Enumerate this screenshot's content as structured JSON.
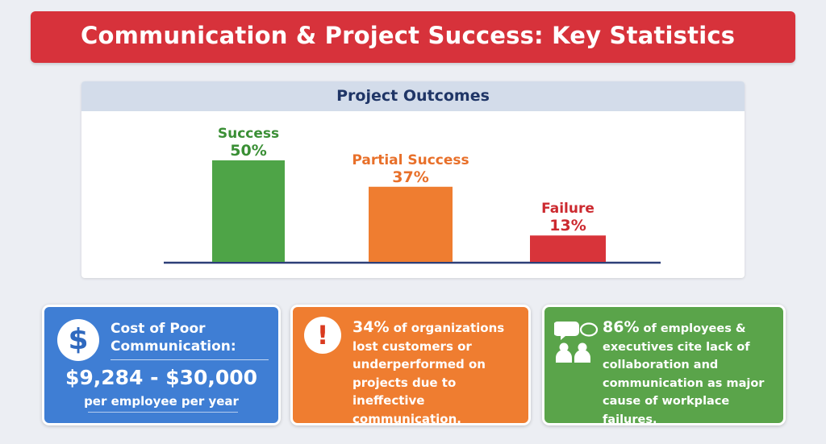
{
  "title": "Communication & Project Success: Key Statistics",
  "chart_data": {
    "type": "bar",
    "title": "Project Outcomes",
    "categories": [
      "Success",
      "Partial Success",
      "Failure"
    ],
    "values": [
      50,
      37,
      13
    ],
    "value_labels": [
      "50%",
      "37%",
      "13%"
    ],
    "colors": [
      "#4ea447",
      "#ef7d30",
      "#d8343a"
    ],
    "ylim": [
      0,
      50
    ],
    "grid": false,
    "legend": "none"
  },
  "cards": {
    "cost": {
      "label": "Cost of Poor Communication:",
      "value": "$9,284 - $30,000",
      "sub": "per employee per year",
      "icon": "dollar-icon",
      "symbol": "$",
      "color": "#3f7ed4"
    },
    "customers": {
      "pct": "34%",
      "text": " of organizations lost customers or underperformed on projects due to ineffective communication.",
      "icon": "exclamation-icon",
      "symbol": "!",
      "color": "#ef7d30"
    },
    "collaboration": {
      "pct": "86%",
      "text": " of employees & executives cite lack of collaboration and communication as major cause of workplace failures.",
      "icon": "people-speech-icon",
      "color": "#5aa44a"
    }
  }
}
